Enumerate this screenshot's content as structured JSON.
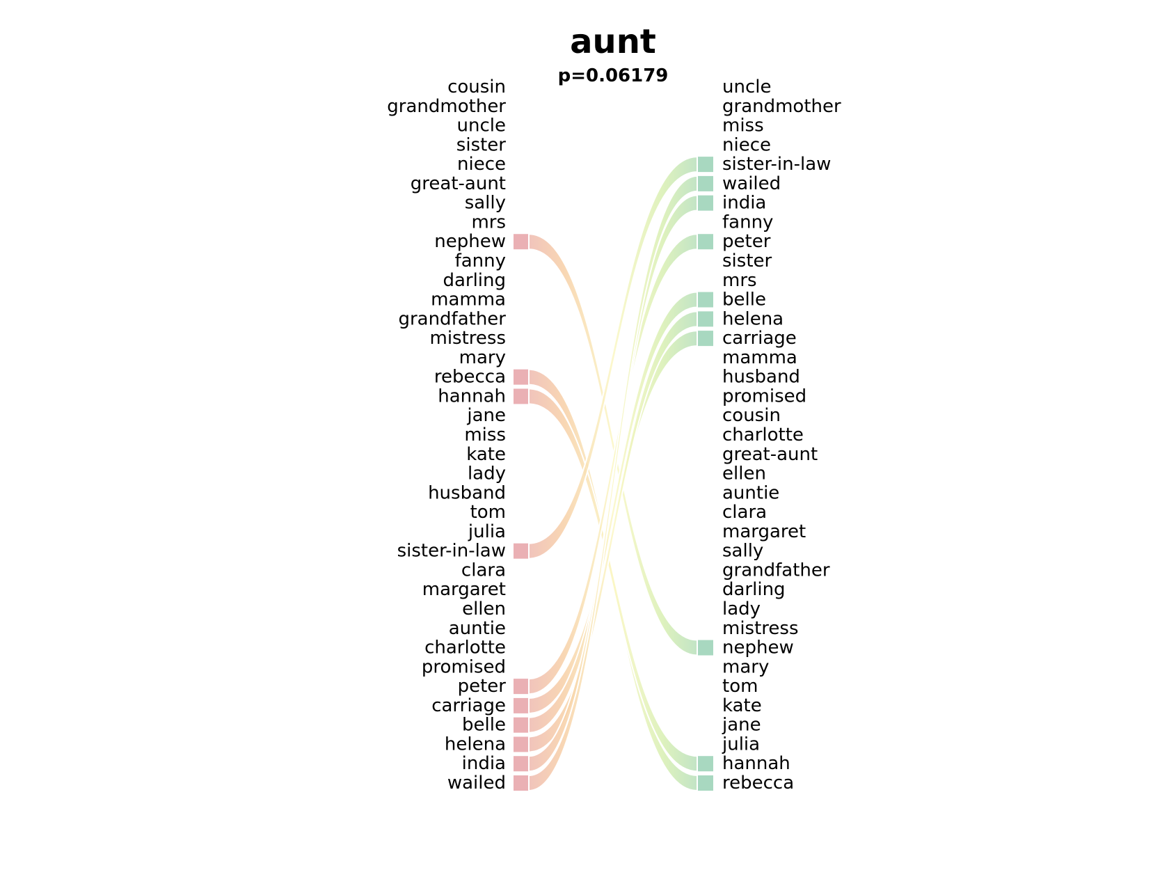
{
  "chart_data": {
    "type": "bump",
    "title": "aunt",
    "subtitle": "p=0.06179",
    "left_labels": [
      "cousin",
      "grandmother",
      "uncle",
      "sister",
      "niece",
      "great-aunt",
      "sally",
      "mrs",
      "nephew",
      "fanny",
      "darling",
      "mamma",
      "grandfather",
      "mistress",
      "mary",
      "rebecca",
      "hannah",
      "jane",
      "miss",
      "kate",
      "lady",
      "husband",
      "tom",
      "julia",
      "sister-in-law",
      "clara",
      "margaret",
      "ellen",
      "auntie",
      "charlotte",
      "promised",
      "peter",
      "carriage",
      "belle",
      "helena",
      "india",
      "wailed"
    ],
    "right_labels": [
      "uncle",
      "grandmother",
      "miss",
      "niece",
      "sister-in-law",
      "wailed",
      "india",
      "fanny",
      "peter",
      "sister",
      "mrs",
      "belle",
      "helena",
      "carriage",
      "mamma",
      "husband",
      "promised",
      "cousin",
      "charlotte",
      "great-aunt",
      "ellen",
      "auntie",
      "clara",
      "margaret",
      "sally",
      "grandfather",
      "darling",
      "lady",
      "mistress",
      "nephew",
      "mary",
      "tom",
      "kate",
      "jane",
      "julia",
      "hannah",
      "rebecca"
    ],
    "highlighted": [
      "nephew",
      "rebecca",
      "hannah",
      "sister-in-law",
      "peter",
      "carriage",
      "belle",
      "helena",
      "india",
      "wailed"
    ],
    "colors": {
      "left_highlight": "#eab0b4",
      "right_highlight": "#a8d8c0",
      "gradient": [
        "#eab0b4",
        "#f7cfa6",
        "#fbf7c4",
        "#d8efb2",
        "#a8d8c0"
      ]
    }
  }
}
